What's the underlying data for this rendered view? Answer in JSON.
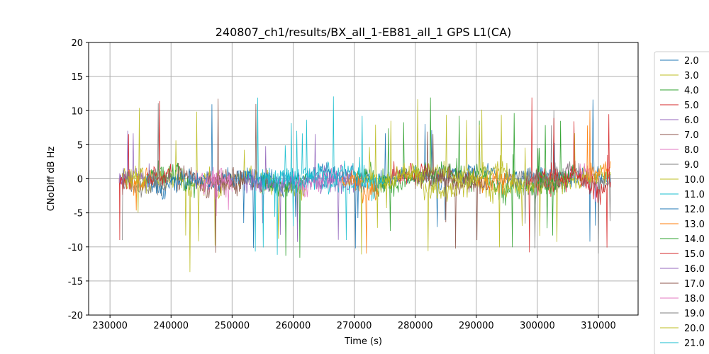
{
  "chart_data": {
    "type": "line",
    "title": "240807_ch1/results/BX_all_1-EB81_all_1 GPS L1(CA)",
    "xlabel": "Time (s)",
    "ylabel": "CNoDiff dB Hz",
    "xlim": [
      226500,
      316500
    ],
    "ylim": [
      -20,
      20
    ],
    "grid": true,
    "legend_position": "right, outside plot",
    "x_ticks": [
      230000,
      240000,
      250000,
      260000,
      270000,
      280000,
      290000,
      300000,
      310000
    ],
    "y_ticks": [
      -20,
      -15,
      -10,
      -5,
      0,
      5,
      10,
      15,
      20
    ],
    "series": [
      {
        "name": "2.0",
        "color": "#1f77b4",
        "segments": [
          [
            262000,
            312000
          ]
        ],
        "amp": 1.8
      },
      {
        "name": "3.0",
        "color": "#bcbd22",
        "segments": [
          [
            232000,
            262000
          ]
        ],
        "amp": 2.0
      },
      {
        "name": "4.0",
        "color": "#2ca02c",
        "segments": [
          [
            236000,
            244000
          ],
          [
            270000,
            305000
          ]
        ],
        "amp": 2.2
      },
      {
        "name": "5.0",
        "color": "#d62728",
        "segments": [
          [
            231500,
            233500
          ],
          [
            276000,
            282000
          ],
          [
            298000,
            304000
          ]
        ],
        "amp": 2.2
      },
      {
        "name": "6.0",
        "color": "#9467bd",
        "segments": [
          [
            231500,
            236500
          ],
          [
            263000,
            271500
          ]
        ],
        "amp": 2.0
      },
      {
        "name": "7.0",
        "color": "#8c564b",
        "segments": [
          [
            241000,
            255000
          ],
          [
            281000,
            290000
          ]
        ],
        "amp": 2.2
      },
      {
        "name": "8.0",
        "color": "#e377c2",
        "segments": [
          [
            244000,
            250000
          ],
          [
            304000,
            310000
          ]
        ],
        "amp": 2.3
      },
      {
        "name": "9.0",
        "color": "#7f7f7f",
        "segments": [
          [
            232000,
            240000
          ],
          [
            302000,
            312000
          ]
        ],
        "amp": 2.0
      },
      {
        "name": "10.0",
        "color": "#bcbd22",
        "segments": [
          [
            271000,
            312000
          ]
        ],
        "amp": 1.8
      },
      {
        "name": "11.0",
        "color": "#17becf",
        "segments": [
          [
            252000,
            275000
          ]
        ],
        "amp": 2.0
      },
      {
        "name": "12.0",
        "color": "#1f77b4",
        "segments": [
          [
            236000,
            261000
          ]
        ],
        "amp": 2.0
      },
      {
        "name": "13.0",
        "color": "#ff7f0e",
        "segments": [
          [
            233000,
            237000
          ],
          [
            268000,
            274000
          ],
          [
            290000,
            296000
          ],
          [
            308000,
            312000
          ]
        ],
        "amp": 2.0
      },
      {
        "name": "14.0",
        "color": "#2ca02c",
        "segments": [
          [
            255000,
            262000
          ],
          [
            300000,
            306000
          ]
        ],
        "amp": 2.1
      },
      {
        "name": "15.0",
        "color": "#d62728",
        "segments": [
          [
            236000,
            240000
          ],
          [
            300000,
            312000
          ]
        ],
        "amp": 2.0
      },
      {
        "name": "16.0",
        "color": "#9467bd",
        "segments": [
          [
            252000,
            270000
          ]
        ],
        "amp": 2.0
      },
      {
        "name": "17.0",
        "color": "#8c564b",
        "segments": [
          [
            246000,
            252000
          ],
          [
            280000,
            292000
          ]
        ],
        "amp": 2.0
      },
      {
        "name": "18.0",
        "color": "#e377c2",
        "segments": [
          [
            245000,
            250000
          ],
          [
            260000,
            268000
          ]
        ],
        "amp": 2.0
      },
      {
        "name": "19.0",
        "color": "#7f7f7f",
        "segments": [
          [
            236000,
            240000
          ],
          [
            295000,
            304000
          ]
        ],
        "amp": 2.0
      },
      {
        "name": "20.0",
        "color": "#bcbd22",
        "segments": [
          [
            232500,
            236000
          ],
          [
            275000,
            298000
          ]
        ],
        "amp": 2.0
      },
      {
        "name": "21.0",
        "color": "#17becf",
        "segments": [
          [
            255000,
            272000
          ]
        ],
        "amp": 2.3
      }
    ]
  }
}
